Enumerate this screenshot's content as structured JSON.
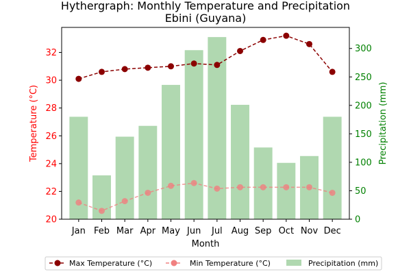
{
  "chart_data": {
    "type": "line+bar",
    "title": "Hythergraph: Monthly Temperature and Precipitation",
    "subtitle": "Ebini (Guyana)",
    "xlabel": "Month",
    "ylabel_left": "Temperature (°C)",
    "ylabel_right": "Precipitation (mm)",
    "categories": [
      "Jan",
      "Feb",
      "Mar",
      "Apr",
      "May",
      "Jun",
      "Jul",
      "Aug",
      "Sep",
      "Oct",
      "Nov",
      "Dec"
    ],
    "ylim_left": [
      20,
      33.8
    ],
    "ylim_right": [
      0,
      337
    ],
    "yticks_left": [
      20,
      22,
      24,
      26,
      28,
      30,
      32
    ],
    "yticks_right": [
      0,
      50,
      100,
      150,
      200,
      250,
      300
    ],
    "series": [
      {
        "name": "Max Temperature (°C)",
        "type": "line",
        "axis": "left",
        "color": "#8b0000",
        "values": [
          30.1,
          30.6,
          30.8,
          30.9,
          31.0,
          31.2,
          31.1,
          32.1,
          32.9,
          33.2,
          32.6,
          30.6
        ]
      },
      {
        "name": "Min Temperature (°C)",
        "type": "line",
        "axis": "left",
        "color": "#f08080",
        "values": [
          21.2,
          20.6,
          21.3,
          21.9,
          22.4,
          22.6,
          22.2,
          22.3,
          22.3,
          22.3,
          22.3,
          21.9
        ]
      },
      {
        "name": "Precipitation (mm)",
        "type": "bar",
        "axis": "right",
        "color": "#b0d8b0",
        "values": [
          180,
          77,
          145,
          164,
          236,
          297,
          320,
          201,
          126,
          99,
          111,
          180
        ]
      }
    ],
    "legend_position": "bottom",
    "colors": {
      "left_axis": "#ff0000",
      "right_axis": "#008000",
      "bar": "#b0d8b0",
      "max_line": "#8b0000",
      "min_line": "#f08080"
    }
  }
}
